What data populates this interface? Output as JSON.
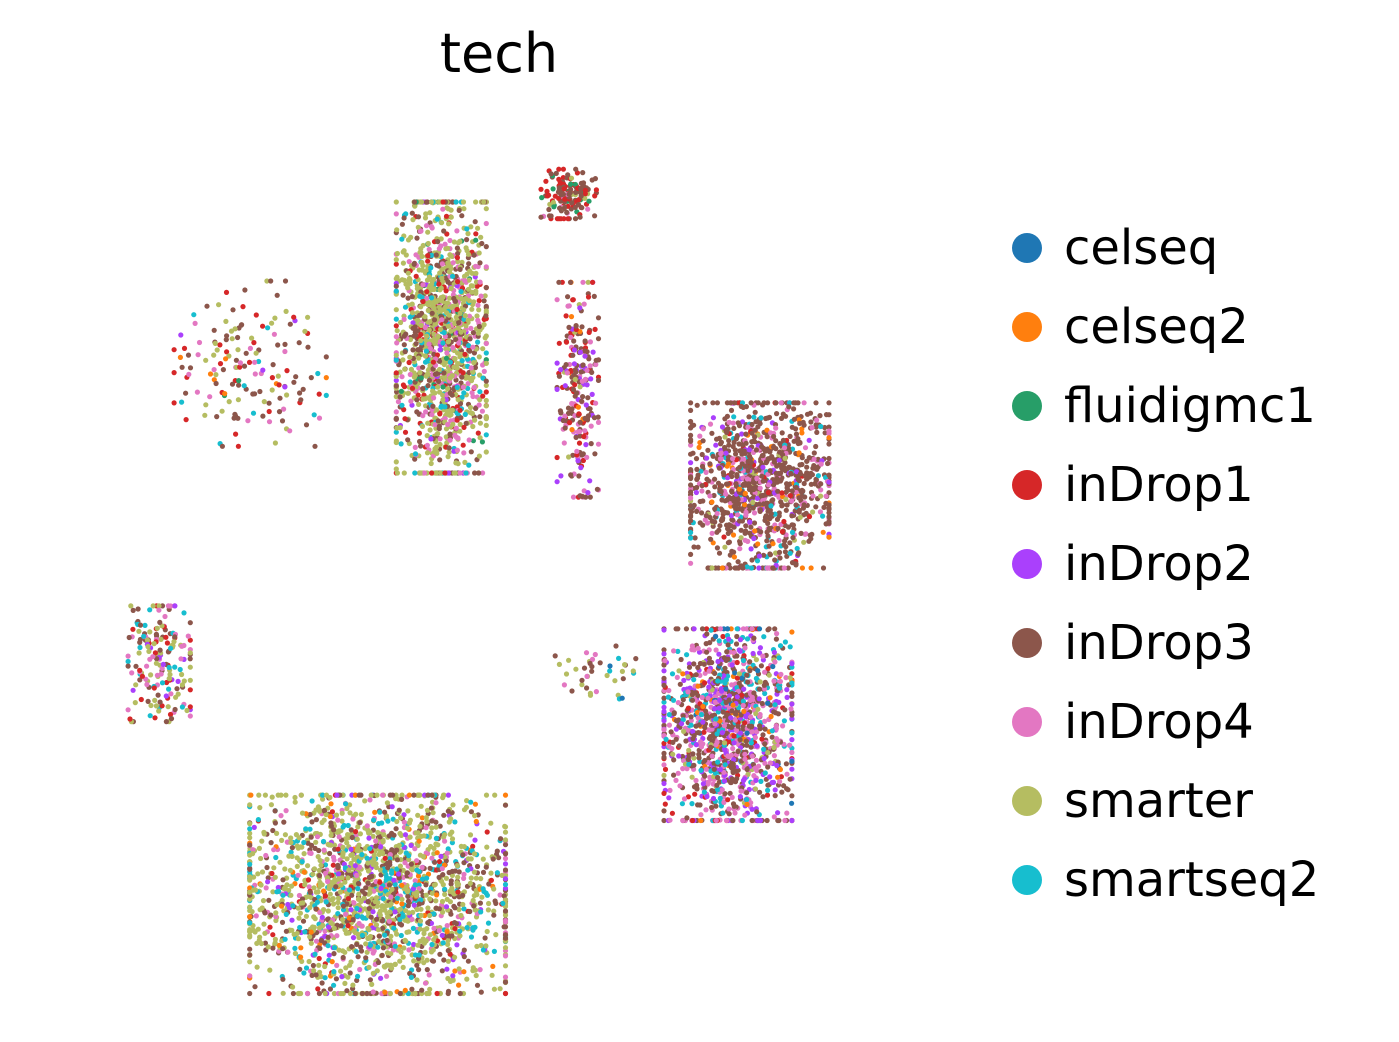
{
  "chart_data": {
    "type": "scatter",
    "title": "tech",
    "xlabel": "",
    "ylabel": "",
    "axes_visible": false,
    "grid": false,
    "legend_position": "right",
    "legend": [
      {
        "name": "celseq",
        "color": "#1f77b4"
      },
      {
        "name": "celseq2",
        "color": "#ff7f0e"
      },
      {
        "name": "fluidigmc1",
        "color": "#279e68"
      },
      {
        "name": "inDrop1",
        "color": "#d62728"
      },
      {
        "name": "inDrop2",
        "color": "#aa40fc"
      },
      {
        "name": "inDrop3",
        "color": "#8c564b"
      },
      {
        "name": "inDrop4",
        "color": "#e377c2"
      },
      {
        "name": "smarter",
        "color": "#b5bd61"
      },
      {
        "name": "smartseq2",
        "color": "#17becf"
      }
    ],
    "xlim": [
      0,
      100
    ],
    "ylim": [
      0,
      100
    ],
    "clusters": [
      {
        "center": [
          22.0,
          72.0
        ],
        "spread": [
          4.4,
          5.0
        ],
        "count": 160,
        "mix": {
          "smarter": 0.22,
          "inDrop4": 0.2,
          "inDrop3": 0.3,
          "inDrop1": 0.14,
          "smartseq2": 0.06,
          "celseq2": 0.04,
          "fluidigmc1": 0.02,
          "inDrop2": 0.02
        }
      },
      {
        "center": [
          43.0,
          75.0
        ],
        "spread": [
          2.6,
          8.2
        ],
        "count": 1400,
        "mix": {
          "smarter": 0.45,
          "inDrop3": 0.2,
          "inDrop4": 0.15,
          "inDrop1": 0.08,
          "smartseq2": 0.07,
          "inDrop2": 0.03,
          "fluidigmc1": 0.02
        }
      },
      {
        "center": [
          57.0,
          91.5
        ],
        "spread": [
          1.6,
          1.5
        ],
        "count": 150,
        "mix": {
          "inDrop3": 0.5,
          "inDrop1": 0.25,
          "inDrop4": 0.1,
          "fluidigmc1": 0.08,
          "smarter": 0.07
        }
      },
      {
        "center": [
          58.0,
          69.0
        ],
        "spread": [
          1.2,
          6.5
        ],
        "count": 240,
        "mix": {
          "inDrop3": 0.45,
          "inDrop4": 0.2,
          "inDrop1": 0.15,
          "inDrop2": 0.12,
          "celseq2": 0.04,
          "smarter": 0.04
        }
      },
      {
        "center": [
          78.0,
          58.0
        ],
        "spread": [
          4.0,
          5.0
        ],
        "count": 1100,
        "mix": {
          "inDrop3": 0.65,
          "inDrop4": 0.14,
          "inDrop2": 0.06,
          "smartseq2": 0.05,
          "celseq2": 0.04,
          "inDrop1": 0.03,
          "smarter": 0.03
        }
      },
      {
        "center": [
          12.0,
          37.5
        ],
        "spread": [
          1.8,
          3.5
        ],
        "count": 180,
        "mix": {
          "smarter": 0.3,
          "inDrop4": 0.2,
          "inDrop3": 0.2,
          "inDrop1": 0.12,
          "smartseq2": 0.1,
          "inDrop2": 0.08
        }
      },
      {
        "center": [
          74.5,
          30.5
        ],
        "spread": [
          3.7,
          5.8
        ],
        "count": 1300,
        "mix": {
          "inDrop3": 0.35,
          "inDrop4": 0.23,
          "inDrop2": 0.15,
          "smartseq2": 0.12,
          "smarter": 0.05,
          "inDrop1": 0.05,
          "celseq2": 0.03,
          "celseq": 0.02
        }
      },
      {
        "center": [
          60.0,
          36.5
        ],
        "spread": [
          2.5,
          1.6
        ],
        "count": 40,
        "mix": {
          "inDrop4": 0.3,
          "inDrop3": 0.3,
          "smarter": 0.2,
          "smartseq2": 0.1,
          "celseq": 0.1
        }
      },
      {
        "center": [
          36.0,
          11.0
        ],
        "spread": [
          7.4,
          6.0
        ],
        "count": 2000,
        "mix": {
          "smarter": 0.45,
          "inDrop3": 0.2,
          "smartseq2": 0.12,
          "inDrop4": 0.1,
          "inDrop2": 0.06,
          "celseq2": 0.04,
          "inDrop1": 0.03
        }
      }
    ]
  }
}
